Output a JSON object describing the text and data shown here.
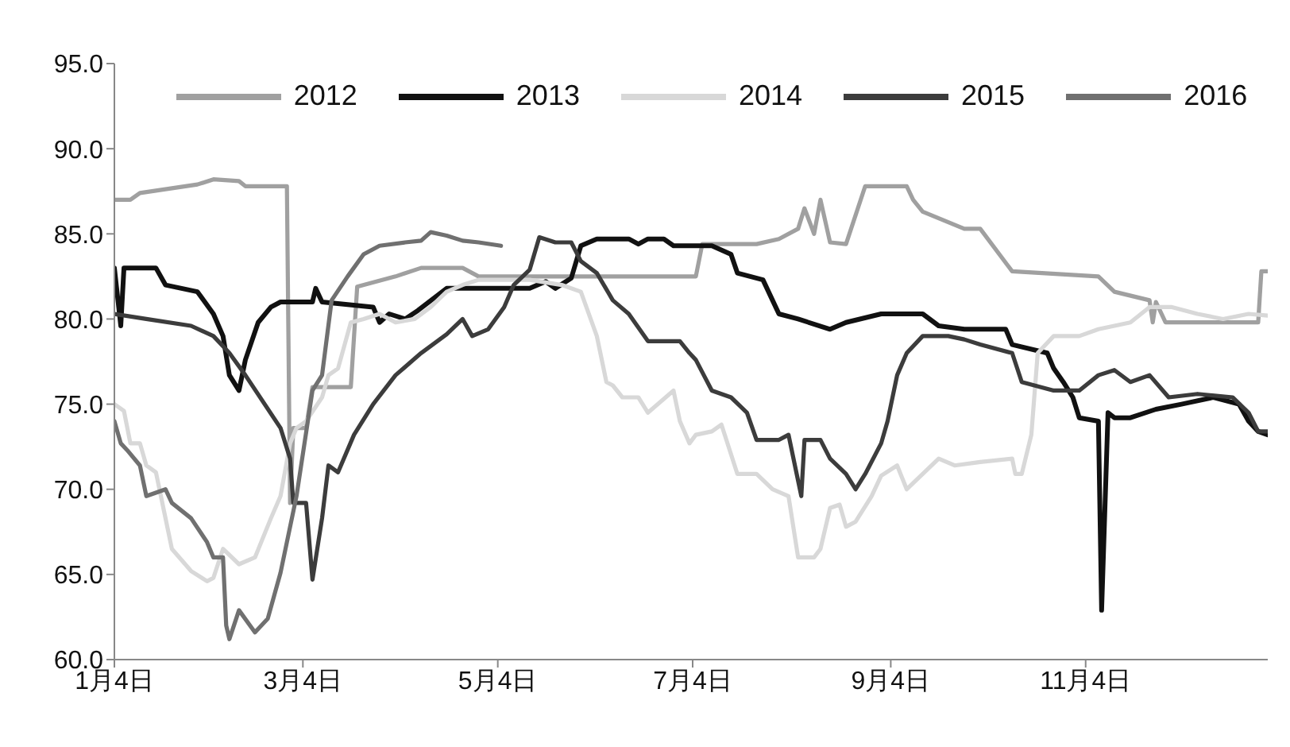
{
  "chart_data": {
    "type": "line",
    "xlim": [
      "--01-04",
      "--12-31"
    ],
    "xticks": [
      {
        "value": "--01-04",
        "label": "1月4日"
      },
      {
        "value": "--03-04",
        "label": "3月4日"
      },
      {
        "value": "--05-04",
        "label": "5月4日"
      },
      {
        "value": "--07-04",
        "label": "7月4日"
      },
      {
        "value": "--09-04",
        "label": "9月4日"
      },
      {
        "value": "--11-04",
        "label": "11月4日"
      }
    ],
    "ylim": [
      60,
      95
    ],
    "yticks": [
      {
        "value": 60,
        "label": "60.0"
      },
      {
        "value": 65,
        "label": "65.0"
      },
      {
        "value": 70,
        "label": "70.0"
      },
      {
        "value": 75,
        "label": "75.0"
      },
      {
        "value": 80,
        "label": "80.0"
      },
      {
        "value": 85,
        "label": "85.0"
      },
      {
        "value": 90,
        "label": "90.0"
      },
      {
        "value": 95,
        "label": "95.0"
      }
    ],
    "grid": false,
    "legend": "top",
    "marker": "none",
    "line_style": "solid",
    "series": [
      {
        "name": "2012",
        "color": "#a0a0a0",
        "x": [
          "--01-04",
          "--01-09",
          "--01-12",
          "--01-30",
          "--02-04",
          "--02-12",
          "--02-14",
          "--02-27",
          "--02-28",
          "--03-01",
          "--03-05",
          "--03-07",
          "--03-19",
          "--03-21",
          "--04-02",
          "--04-10",
          "--04-23",
          "--04-28",
          "--07-05",
          "--07-07",
          "--07-24",
          "--07-31",
          "--08-06",
          "--08-08",
          "--08-11",
          "--08-13",
          "--08-16",
          "--08-21",
          "--08-27",
          "--09-09",
          "--09-11",
          "--09-14",
          "--09-27",
          "--10-02",
          "--10-12",
          "--11-08",
          "--11-13",
          "--11-24",
          "--11-25",
          "--11-26",
          "--11-29",
          "--12-28",
          "--12-29",
          "--12-31"
        ],
        "values": [
          87.0,
          87.0,
          87.4,
          87.9,
          88.2,
          88.1,
          87.8,
          87.8,
          69.2,
          73.6,
          73.6,
          76.0,
          76.0,
          81.9,
          82.5,
          83.0,
          83.0,
          82.5,
          82.5,
          84.4,
          84.4,
          84.7,
          85.3,
          86.5,
          85.0,
          87.0,
          84.5,
          84.4,
          87.8,
          87.8,
          87.0,
          86.3,
          85.3,
          85.3,
          82.8,
          82.5,
          81.6,
          81.1,
          79.8,
          81.0,
          79.8,
          79.8,
          82.8,
          82.8
        ]
      },
      {
        "name": "2013",
        "color": "#111111",
        "x": [
          "--01-04",
          "--01-06",
          "--01-07",
          "--01-17",
          "--01-20",
          "--01-30",
          "--02-04",
          "--02-07",
          "--02-09",
          "--02-12",
          "--02-14",
          "--02-18",
          "--02-22",
          "--02-25",
          "--03-07",
          "--03-08",
          "--03-10",
          "--03-26",
          "--03-28",
          "--03-31",
          "--04-05",
          "--04-09",
          "--04-18",
          "--05-14",
          "--05-19",
          "--05-22",
          "--05-27",
          "--05-30",
          "--06-04",
          "--06-14",
          "--06-17",
          "--06-20",
          "--06-25",
          "--06-28",
          "--07-10",
          "--07-16",
          "--07-18",
          "--07-26",
          "--07-29",
          "--07-31",
          "--08-06",
          "--08-16",
          "--08-21",
          "--09-01",
          "--09-14",
          "--09-19",
          "--09-27",
          "--10-10",
          "--10-12",
          "--10-23",
          "--10-25",
          "--10-28",
          "--10-31",
          "--11-02",
          "--11-08",
          "--11-09",
          "--11-11",
          "--11-13",
          "--11-18",
          "--11-26",
          "--12-04",
          "--12-14",
          "--12-22",
          "--12-25",
          "--12-28",
          "--12-31"
        ],
        "values": [
          83.0,
          79.6,
          83.0,
          83.0,
          82.0,
          81.6,
          80.3,
          79.0,
          76.7,
          75.8,
          77.6,
          79.8,
          80.7,
          81.0,
          81.0,
          81.8,
          81.0,
          80.7,
          79.8,
          80.3,
          80.0,
          80.5,
          81.8,
          81.8,
          82.2,
          81.8,
          82.4,
          84.3,
          84.7,
          84.7,
          84.4,
          84.7,
          84.7,
          84.3,
          84.3,
          83.8,
          82.7,
          82.3,
          81.1,
          80.3,
          80.0,
          79.4,
          79.8,
          80.3,
          80.3,
          79.6,
          79.4,
          79.4,
          78.5,
          78.0,
          77.1,
          76.3,
          75.4,
          74.2,
          74.0,
          62.9,
          74.5,
          74.2,
          74.2,
          74.7,
          75.0,
          75.4,
          75.0,
          74.0,
          73.4,
          73.2
        ]
      },
      {
        "name": "2014",
        "color": "#d8d8d8",
        "x": [
          "--01-04",
          "--01-07",
          "--01-09",
          "--01-12",
          "--01-14",
          "--01-17",
          "--01-20",
          "--01-22",
          "--01-28",
          "--02-02",
          "--02-04",
          "--02-07",
          "--02-12",
          "--02-17",
          "--02-22",
          "--02-25",
          "--02-28",
          "--03-02",
          "--03-05",
          "--03-10",
          "--03-12",
          "--03-15",
          "--03-19",
          "--03-23",
          "--03-28",
          "--04-02",
          "--04-08",
          "--04-13",
          "--04-18",
          "--04-23",
          "--04-28",
          "--05-14",
          "--05-24",
          "--05-30",
          "--06-04",
          "--06-07",
          "--06-09",
          "--06-12",
          "--06-17",
          "--06-20",
          "--06-28",
          "--06-30",
          "--07-03",
          "--07-05",
          "--07-10",
          "--07-13",
          "--07-18",
          "--07-24",
          "--07-29",
          "--08-03",
          "--08-06",
          "--08-11",
          "--08-13",
          "--08-16",
          "--08-19",
          "--08-21",
          "--08-24",
          "--08-29",
          "--09-01",
          "--09-06",
          "--09-09",
          "--09-14",
          "--09-19",
          "--09-24",
          "--10-02",
          "--10-12",
          "--10-13",
          "--10-15",
          "--10-18",
          "--10-20",
          "--10-25",
          "--11-02",
          "--11-08",
          "--11-18",
          "--11-24",
          "--12-01",
          "--12-09",
          "--12-17",
          "--12-25",
          "--12-31"
        ],
        "values": [
          75.0,
          74.6,
          72.7,
          72.7,
          71.4,
          71.0,
          68.3,
          66.5,
          65.2,
          64.6,
          64.8,
          66.5,
          65.6,
          66.0,
          68.3,
          69.6,
          72.7,
          73.6,
          74.0,
          75.4,
          76.7,
          77.1,
          79.8,
          80.0,
          80.3,
          79.8,
          80.0,
          80.7,
          81.6,
          82.0,
          82.3,
          82.3,
          82.0,
          81.6,
          79.0,
          76.3,
          76.1,
          75.4,
          75.4,
          74.5,
          75.8,
          74.0,
          72.7,
          73.2,
          73.4,
          73.8,
          70.9,
          70.9,
          70.0,
          69.6,
          66.0,
          66.0,
          66.5,
          68.9,
          69.1,
          67.8,
          68.1,
          69.6,
          70.8,
          71.4,
          70.0,
          70.9,
          71.8,
          71.4,
          71.6,
          71.8,
          70.9,
          70.9,
          73.2,
          78.0,
          79.0,
          79.0,
          79.4,
          79.8,
          80.7,
          80.7,
          80.3,
          80.0,
          80.3,
          80.2
        ]
      },
      {
        "name": "2015",
        "color": "#3c3c3c",
        "x": [
          "--01-04",
          "--01-14",
          "--01-28",
          "--02-04",
          "--02-09",
          "--02-14",
          "--02-25",
          "--02-28",
          "--03-01",
          "--03-05",
          "--03-07",
          "--03-10",
          "--03-12",
          "--03-15",
          "--03-20",
          "--03-26",
          "--04-02",
          "--04-10",
          "--04-18",
          "--04-23",
          "--04-26",
          "--05-01",
          "--05-06",
          "--05-09",
          "--05-14",
          "--05-17",
          "--05-22",
          "--05-27",
          "--05-30",
          "--06-04",
          "--06-09",
          "--06-14",
          "--06-20",
          "--06-30",
          "--07-03",
          "--07-05",
          "--07-10",
          "--07-16",
          "--07-21",
          "--07-24",
          "--07-31",
          "--08-03",
          "--08-07",
          "--08-08",
          "--08-13",
          "--08-16",
          "--08-21",
          "--08-24",
          "--08-27",
          "--09-01",
          "--09-03",
          "--09-06",
          "--09-09",
          "--09-14",
          "--09-22",
          "--09-27",
          "--10-02",
          "--10-12",
          "--10-15",
          "--10-25",
          "--11-02",
          "--11-08",
          "--11-13",
          "--11-18",
          "--11-24",
          "--11-30",
          "--12-09",
          "--12-20",
          "--12-25",
          "--12-28",
          "--12-31"
        ],
        "values": [
          80.3,
          80.0,
          79.6,
          79.0,
          78.0,
          76.7,
          73.6,
          71.8,
          69.2,
          69.2,
          64.7,
          68.3,
          71.4,
          71.0,
          73.2,
          75.0,
          76.7,
          78.0,
          79.1,
          80.0,
          79.0,
          79.4,
          80.7,
          82.0,
          82.9,
          84.8,
          84.5,
          84.5,
          83.4,
          82.7,
          81.1,
          80.3,
          78.7,
          78.7,
          78.0,
          77.6,
          75.8,
          75.4,
          74.5,
          72.9,
          72.9,
          73.2,
          69.6,
          72.9,
          72.9,
          71.8,
          70.9,
          70.0,
          70.9,
          72.7,
          74.0,
          76.7,
          78.0,
          79.0,
          79.0,
          78.8,
          78.5,
          78.0,
          76.3,
          75.8,
          75.8,
          76.7,
          77.0,
          76.3,
          76.7,
          75.4,
          75.6,
          75.4,
          74.5,
          73.4,
          73.4
        ]
      },
      {
        "name": "2016",
        "color": "#707070",
        "x": [
          "--01-04",
          "--01-06",
          "--01-08",
          "--01-12",
          "--01-14",
          "--01-20",
          "--01-22",
          "--01-28",
          "--02-02",
          "--02-04",
          "--02-07",
          "--02-08",
          "--02-09",
          "--02-12",
          "--02-17",
          "--02-21",
          "--02-25",
          "--03-02",
          "--03-07",
          "--03-10",
          "--03-13",
          "--03-18",
          "--03-23",
          "--03-28",
          "--04-05",
          "--04-10",
          "--04-13",
          "--04-18",
          "--04-23",
          "--04-28",
          "--05-05"
        ],
        "values": [
          74.0,
          72.7,
          72.3,
          71.4,
          69.6,
          70.0,
          69.2,
          68.3,
          66.9,
          66.0,
          66.0,
          62.0,
          61.2,
          62.9,
          61.6,
          62.4,
          65.1,
          69.6,
          75.8,
          76.7,
          81.1,
          82.5,
          83.8,
          84.3,
          84.5,
          84.6,
          85.1,
          84.9,
          84.6,
          84.5,
          84.3
        ]
      }
    ]
  }
}
